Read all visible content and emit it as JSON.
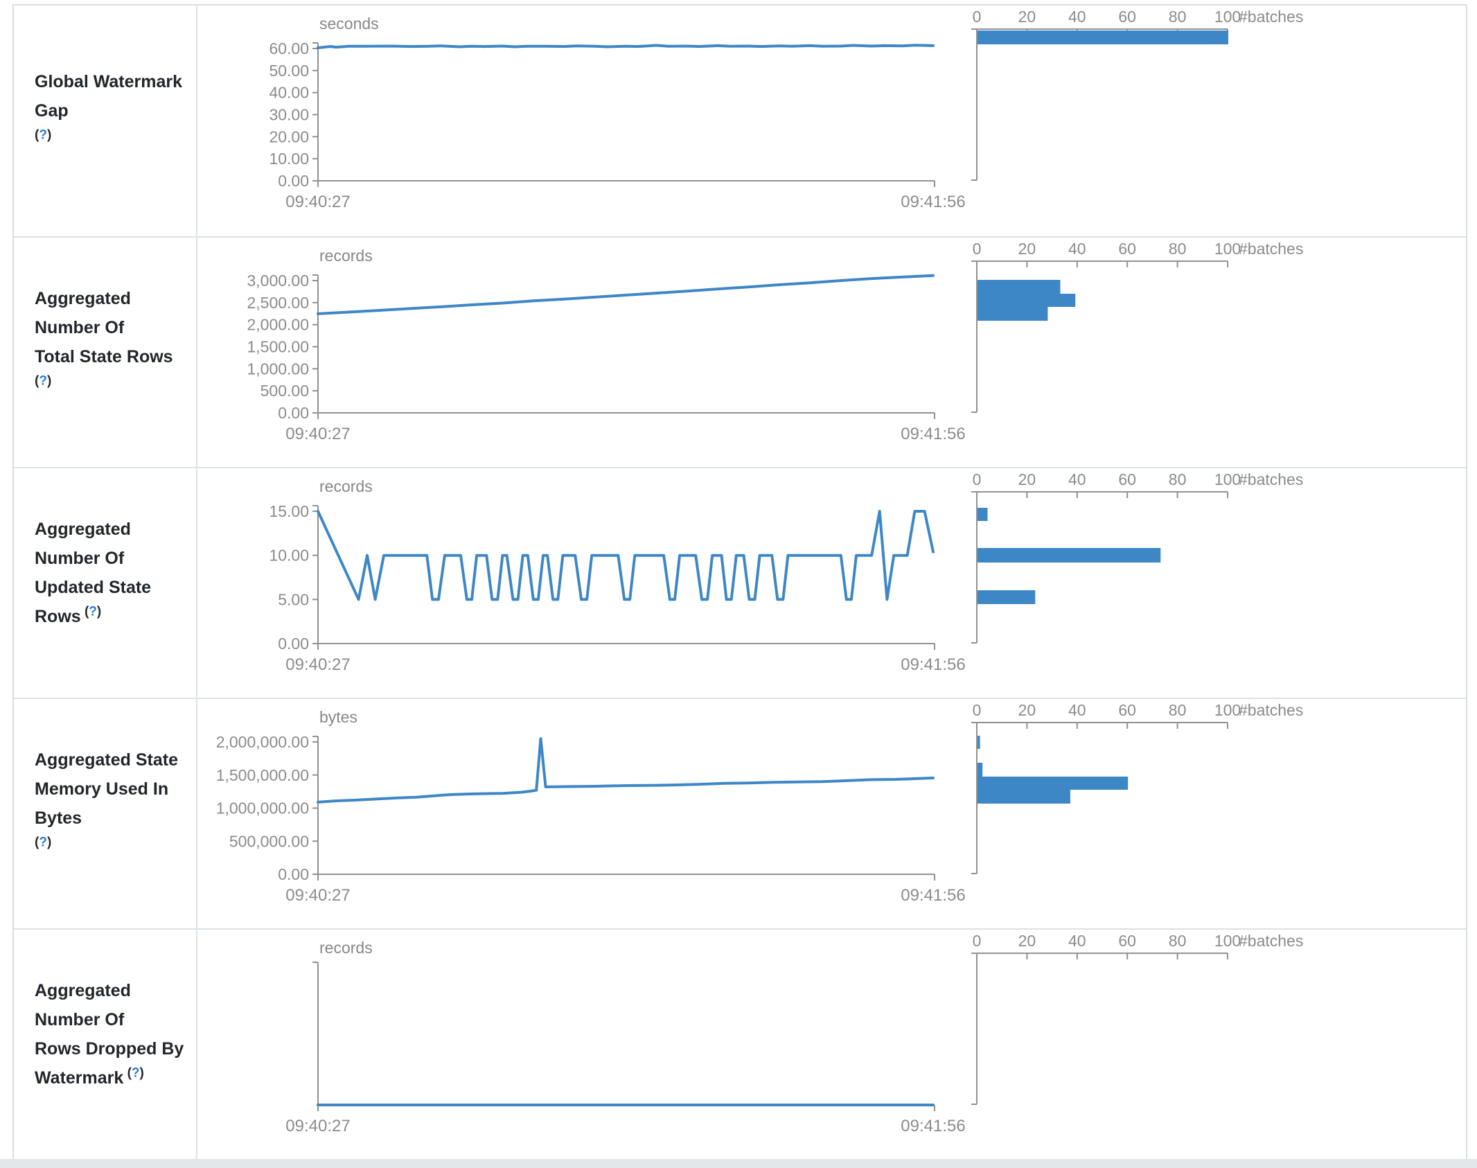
{
  "colors": {
    "accent_blue": "#3e87c7",
    "axis_gray": "#919191",
    "tick_text": "#8b8b8b",
    "label_text": "#22262b",
    "help_blue": "#2b7bd0",
    "border": "#dde2e6"
  },
  "axis": {
    "time_start": "09:40:27",
    "time_end": "09:41:56",
    "batches_ticks": [
      0,
      20,
      40,
      60,
      80,
      100
    ],
    "batches_label": "#batches"
  },
  "rows": [
    {
      "label": "Global Watermark Gap",
      "label_lines": [
        "Global Watermark Gap"
      ],
      "help": "(?)",
      "help_newline": true,
      "timeline": {
        "type": "line",
        "unit": "seconds",
        "y_max": 60,
        "y_ticks": [
          {
            "label": "60.00",
            "v": 60
          },
          {
            "label": "50.00",
            "v": 50
          },
          {
            "label": "40.00",
            "v": 40
          },
          {
            "label": "30.00",
            "v": 30
          },
          {
            "label": "20.00",
            "v": 20
          },
          {
            "label": "10.00",
            "v": 10
          },
          {
            "label": "0.00",
            "v": 0
          }
        ],
        "line": [
          [
            0,
            60.3
          ],
          [
            0.02,
            60.9
          ],
          [
            0.03,
            60.6
          ],
          [
            0.05,
            61
          ],
          [
            0.08,
            61
          ],
          [
            0.12,
            61.1
          ],
          [
            0.15,
            60.9
          ],
          [
            0.18,
            61
          ],
          [
            0.2,
            61.2
          ],
          [
            0.23,
            60.8
          ],
          [
            0.25,
            61
          ],
          [
            0.27,
            60.9
          ],
          [
            0.3,
            61.1
          ],
          [
            0.32,
            60.8
          ],
          [
            0.34,
            61
          ],
          [
            0.37,
            61
          ],
          [
            0.4,
            60.9
          ],
          [
            0.42,
            61.2
          ],
          [
            0.45,
            61
          ],
          [
            0.47,
            60.8
          ],
          [
            0.5,
            61
          ],
          [
            0.52,
            60.9
          ],
          [
            0.55,
            61.4
          ],
          [
            0.57,
            61
          ],
          [
            0.6,
            61.1
          ],
          [
            0.62,
            60.9
          ],
          [
            0.65,
            61.3
          ],
          [
            0.67,
            61
          ],
          [
            0.7,
            61.1
          ],
          [
            0.72,
            60.9
          ],
          [
            0.75,
            61.2
          ],
          [
            0.77,
            61
          ],
          [
            0.8,
            61.3
          ],
          [
            0.82,
            61
          ],
          [
            0.85,
            61.1
          ],
          [
            0.87,
            61.4
          ],
          [
            0.9,
            61.1
          ],
          [
            0.92,
            61.3
          ],
          [
            0.95,
            61.2
          ],
          [
            0.97,
            61.5
          ],
          [
            1,
            61.3
          ]
        ]
      },
      "histogram": {
        "type": "bar",
        "bars": [
          {
            "y": 36,
            "h": 20,
            "count": 100
          }
        ]
      }
    },
    {
      "label": "Aggregated Number Of Total State Rows",
      "label_lines": [
        "Aggregated Number Of",
        "Total State Rows"
      ],
      "help": "(?)",
      "help_newline": false,
      "timeline": {
        "type": "line",
        "unit": "records",
        "y_max": 3000,
        "y_ticks": [
          {
            "label": "3,000.00",
            "v": 3000
          },
          {
            "label": "2,500.00",
            "v": 2500
          },
          {
            "label": "2,000.00",
            "v": 2000
          },
          {
            "label": "1,500.00",
            "v": 1500
          },
          {
            "label": "1,000.00",
            "v": 1000
          },
          {
            "label": "500.00",
            "v": 500
          },
          {
            "label": "0.00",
            "v": 0
          }
        ],
        "line": [
          [
            0,
            2248
          ],
          [
            0.05,
            2285
          ],
          [
            0.1,
            2325
          ],
          [
            0.15,
            2365
          ],
          [
            0.2,
            2405
          ],
          [
            0.25,
            2450
          ],
          [
            0.3,
            2490
          ],
          [
            0.35,
            2540
          ],
          [
            0.4,
            2580
          ],
          [
            0.45,
            2625
          ],
          [
            0.5,
            2670
          ],
          [
            0.55,
            2715
          ],
          [
            0.6,
            2760
          ],
          [
            0.65,
            2810
          ],
          [
            0.7,
            2855
          ],
          [
            0.75,
            2905
          ],
          [
            0.8,
            2950
          ],
          [
            0.85,
            3000
          ],
          [
            0.9,
            3045
          ],
          [
            0.95,
            3080
          ],
          [
            1,
            3115
          ]
        ]
      },
      "histogram": {
        "type": "bar",
        "bars": [
          {
            "y": 61,
            "h": 20,
            "count": 33
          },
          {
            "y": 81,
            "h": 19,
            "count": 39
          },
          {
            "y": 100,
            "h": 20,
            "count": 28
          }
        ]
      }
    },
    {
      "label": "Aggregated Number Of Updated State Rows",
      "label_lines": [
        "Aggregated Number Of",
        "Updated State Rows"
      ],
      "help": "(?)",
      "help_newline": false,
      "timeline": {
        "type": "line",
        "unit": "records",
        "y_max": 15,
        "y_ticks": [
          {
            "label": "15.00",
            "v": 15
          },
          {
            "label": "10.00",
            "v": 10
          },
          {
            "label": "5.00",
            "v": 5
          },
          {
            "label": "0.00",
            "v": 0
          }
        ],
        "line": [
          [
            0,
            15
          ],
          [
            0.066,
            5
          ],
          [
            0.08,
            10
          ],
          [
            0.093,
            5
          ],
          [
            0.107,
            10
          ],
          [
            0.177,
            10
          ],
          [
            0.186,
            5
          ],
          [
            0.196,
            5
          ],
          [
            0.206,
            10
          ],
          [
            0.232,
            10
          ],
          [
            0.242,
            5
          ],
          [
            0.25,
            5
          ],
          [
            0.258,
            10
          ],
          [
            0.274,
            10
          ],
          [
            0.283,
            5
          ],
          [
            0.292,
            5
          ],
          [
            0.3,
            10
          ],
          [
            0.307,
            10
          ],
          [
            0.317,
            5
          ],
          [
            0.325,
            5
          ],
          [
            0.333,
            10
          ],
          [
            0.341,
            10
          ],
          [
            0.35,
            5
          ],
          [
            0.358,
            5
          ],
          [
            0.366,
            10
          ],
          [
            0.373,
            10
          ],
          [
            0.382,
            5
          ],
          [
            0.39,
            5
          ],
          [
            0.398,
            10
          ],
          [
            0.418,
            10
          ],
          [
            0.428,
            5
          ],
          [
            0.437,
            5
          ],
          [
            0.445,
            10
          ],
          [
            0.488,
            10
          ],
          [
            0.498,
            5
          ],
          [
            0.507,
            5
          ],
          [
            0.515,
            10
          ],
          [
            0.562,
            10
          ],
          [
            0.572,
            5
          ],
          [
            0.58,
            5
          ],
          [
            0.588,
            10
          ],
          [
            0.614,
            10
          ],
          [
            0.624,
            5
          ],
          [
            0.633,
            5
          ],
          [
            0.641,
            10
          ],
          [
            0.656,
            10
          ],
          [
            0.664,
            5
          ],
          [
            0.672,
            5
          ],
          [
            0.68,
            10
          ],
          [
            0.692,
            10
          ],
          [
            0.701,
            5
          ],
          [
            0.71,
            5
          ],
          [
            0.718,
            10
          ],
          [
            0.738,
            10
          ],
          [
            0.747,
            5
          ],
          [
            0.756,
            5
          ],
          [
            0.764,
            10
          ],
          [
            0.85,
            10
          ],
          [
            0.859,
            5
          ],
          [
            0.867,
            5
          ],
          [
            0.875,
            10
          ],
          [
            0.9,
            10
          ],
          [
            0.913,
            15
          ],
          [
            0.925,
            5
          ],
          [
            0.936,
            10
          ],
          [
            0.958,
            10
          ],
          [
            0.97,
            15
          ],
          [
            0.986,
            15
          ],
          [
            1,
            10.4
          ]
        ]
      },
      "histogram": {
        "type": "bar",
        "bars": [
          {
            "y": 57,
            "h": 19,
            "count": 4
          },
          {
            "y": 115,
            "h": 21,
            "count": 73
          },
          {
            "y": 176,
            "h": 20,
            "count": 23
          }
        ]
      }
    },
    {
      "label": "Aggregated State Memory Used In Bytes",
      "label_lines": [
        "Aggregated State",
        "Memory Used In Bytes"
      ],
      "help": "(?)",
      "help_newline": true,
      "timeline": {
        "type": "line",
        "unit": "bytes",
        "y_max": 2000000,
        "y_ticks": [
          {
            "label": "2,000,000.00",
            "v": 2000000
          },
          {
            "label": "1,500,000.00",
            "v": 1500000
          },
          {
            "label": "1,000,000.00",
            "v": 1000000
          },
          {
            "label": "500,000.00",
            "v": 500000
          },
          {
            "label": "0.00",
            "v": 0
          }
        ],
        "line": [
          [
            0,
            1090000
          ],
          [
            0.03,
            1110000
          ],
          [
            0.06,
            1120000
          ],
          [
            0.1,
            1140000
          ],
          [
            0.13,
            1155000
          ],
          [
            0.16,
            1165000
          ],
          [
            0.2,
            1195000
          ],
          [
            0.22,
            1205000
          ],
          [
            0.25,
            1215000
          ],
          [
            0.28,
            1220000
          ],
          [
            0.3,
            1222000
          ],
          [
            0.33,
            1240000
          ],
          [
            0.345,
            1255000
          ],
          [
            0.355,
            1270000
          ],
          [
            0.362,
            2050000
          ],
          [
            0.37,
            1320000
          ],
          [
            0.4,
            1325000
          ],
          [
            0.45,
            1330000
          ],
          [
            0.5,
            1340000
          ],
          [
            0.55,
            1345000
          ],
          [
            0.58,
            1350000
          ],
          [
            0.62,
            1360000
          ],
          [
            0.66,
            1375000
          ],
          [
            0.7,
            1380000
          ],
          [
            0.74,
            1390000
          ],
          [
            0.78,
            1395000
          ],
          [
            0.82,
            1400000
          ],
          [
            0.86,
            1415000
          ],
          [
            0.9,
            1430000
          ],
          [
            0.94,
            1435000
          ],
          [
            0.97,
            1445000
          ],
          [
            1,
            1455000
          ]
        ]
      },
      "histogram": {
        "type": "bar",
        "bars": [
          {
            "y": 53,
            "h": 19,
            "count": 1
          },
          {
            "y": 92,
            "h": 20,
            "count": 2
          },
          {
            "y": 112,
            "h": 19,
            "count": 60
          },
          {
            "y": 131,
            "h": 20,
            "count": 37
          }
        ]
      }
    },
    {
      "label": "Aggregated Number Of Rows Dropped By Watermark",
      "label_lines": [
        "Aggregated Number Of",
        "Rows Dropped By",
        "Watermark"
      ],
      "help": "(?)",
      "help_newline": false,
      "timeline": {
        "type": "line",
        "unit": "records",
        "y_max": 1,
        "y_ticks": [],
        "line": [
          [
            0,
            0
          ],
          [
            1,
            0
          ]
        ]
      },
      "histogram": {
        "type": "bar",
        "bars": []
      }
    }
  ]
}
